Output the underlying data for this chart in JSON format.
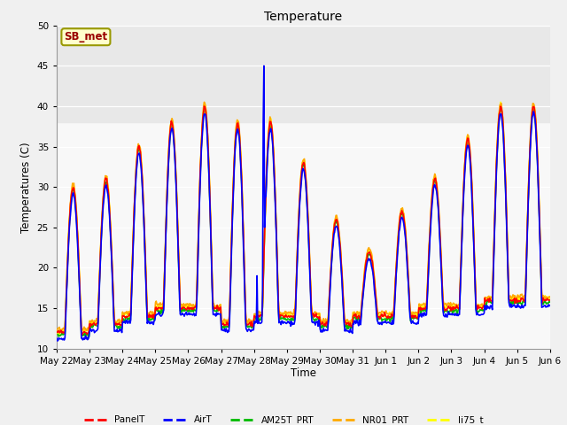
{
  "title": "Temperature",
  "ylabel": "Temperatures (C)",
  "xlabel": "Time",
  "ylim": [
    10,
    50
  ],
  "yticks": [
    10,
    15,
    20,
    25,
    30,
    35,
    40,
    45,
    50
  ],
  "series_colors": {
    "PanelT": "#ff0000",
    "AirT": "#0000ff",
    "AM25T_PRT": "#00bb00",
    "NR01_PRT": "#ffaa00",
    "li75_t": "#ffff00"
  },
  "shade_above": 38,
  "shade_color": "#e8e8e8",
  "annotation_text": "SB_met",
  "annotation_bg": "#ffffcc",
  "annotation_border": "#999900",
  "annotation_text_color": "#990000",
  "x_tick_labels": [
    "May 22",
    "May 23",
    "May 24",
    "May 25",
    "May 26",
    "May 27",
    "May 28",
    "May 29",
    "May 30",
    "May 31",
    "Jun 1",
    "Jun 2",
    "Jun 3",
    "Jun 4",
    "Jun 5",
    "Jun 6"
  ],
  "background_color": "#f0f0f0",
  "plot_bg": "#f8f8f8",
  "linewidth": 1.2,
  "daily_peaks": [
    30,
    31,
    35,
    38,
    40,
    38,
    38,
    33,
    26,
    22,
    27,
    31,
    36,
    40,
    40
  ],
  "daily_lows": [
    12,
    13,
    14,
    15,
    15,
    13,
    14,
    14,
    13,
    14,
    14,
    15,
    15,
    16,
    16
  ]
}
